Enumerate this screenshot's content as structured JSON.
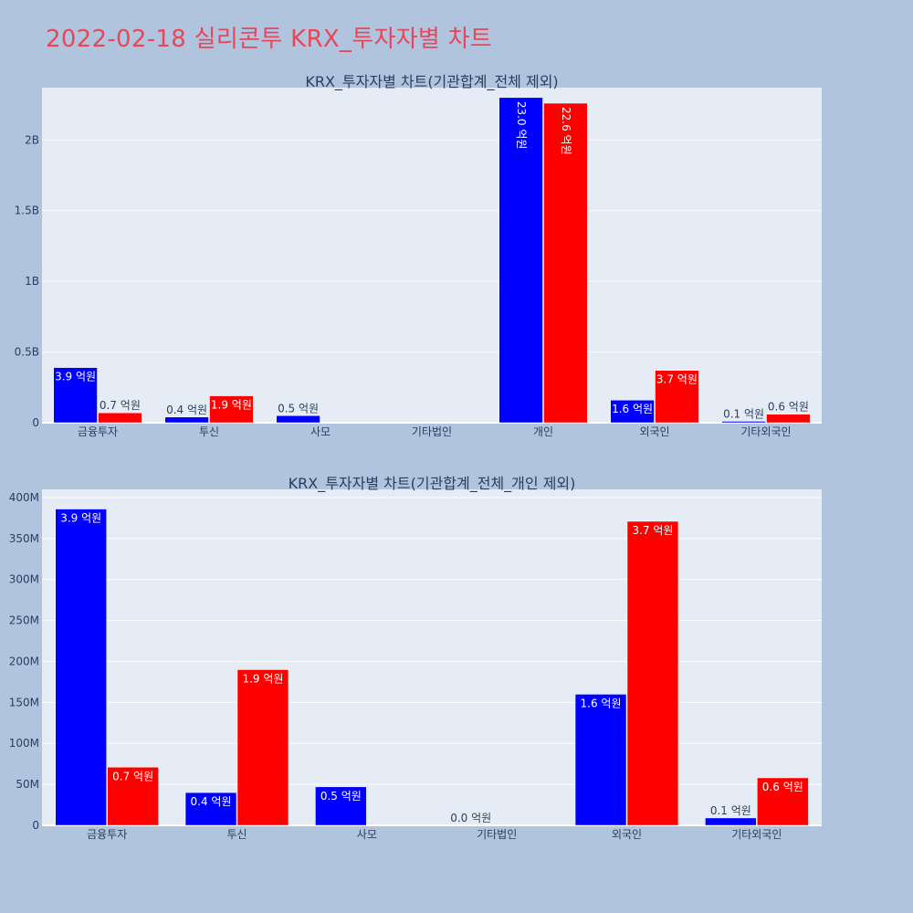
{
  "page": {
    "title": "2022-02-18 실리콘투 KRX_투자자별 차트"
  },
  "colors": {
    "buy": "#0000ff",
    "sell": "#ff0000",
    "plot_bg": "#e5ecf6",
    "page_bg": "#b0c4de",
    "title": "#e8475a"
  },
  "chart_data": [
    {
      "type": "bar",
      "title": "KRX_투자자별 차트(기관합계_전체 제외)",
      "categories": [
        "금융투자",
        "투신",
        "사모",
        "기타법인",
        "개인",
        "외국인",
        "기타외국인"
      ],
      "series": [
        {
          "color": "#0000ff",
          "values": [
            390000000,
            40000000,
            50000000,
            0,
            2300000000,
            160000000,
            10000000
          ],
          "labels": [
            "3.9 억원",
            "0.4 억원",
            "0.5 억원",
            "",
            "23.0 억원",
            "1.6 억원",
            "0.1 억원"
          ]
        },
        {
          "color": "#ff0000",
          "values": [
            70000000,
            190000000,
            0,
            0,
            2260000000,
            370000000,
            60000000
          ],
          "labels": [
            "0.7 억원",
            "1.9 억원",
            "",
            "",
            "22.6 억원",
            "3.7 억원",
            "0.6 억원"
          ]
        }
      ],
      "ylim": [
        0,
        2370000000
      ],
      "yticks": [
        {
          "value": 0,
          "label": "0"
        },
        {
          "value": 500000000,
          "label": "0.5B"
        },
        {
          "value": 1000000000,
          "label": "1B"
        },
        {
          "value": 1500000000,
          "label": "1.5B"
        },
        {
          "value": 2000000000,
          "label": "2B"
        }
      ],
      "grid": true,
      "legend": "none"
    },
    {
      "type": "bar",
      "title": "KRX_투자자별 차트(기관합계_전체_개인 제외)",
      "categories": [
        "금융투자",
        "투신",
        "사모",
        "기타법인",
        "외국인",
        "기타외국인"
      ],
      "series": [
        {
          "color": "#0000ff",
          "values": [
            386000000,
            40000000,
            47000000,
            0,
            160000000,
            9000000
          ],
          "labels": [
            "3.9 억원",
            "0.4 억원",
            "0.5 억원",
            "0.0 억원",
            "1.6 억원",
            "0.1 억원"
          ]
        },
        {
          "color": "#ff0000",
          "values": [
            71000000,
            190000000,
            0,
            0,
            371000000,
            58000000
          ],
          "labels": [
            "0.7 억원",
            "1.9 억원",
            "",
            "",
            "3.7 억원",
            "0.6 억원"
          ]
        }
      ],
      "ylim": [
        0,
        410000000
      ],
      "yticks": [
        {
          "value": 0,
          "label": "0"
        },
        {
          "value": 50000000,
          "label": "50M"
        },
        {
          "value": 100000000,
          "label": "100M"
        },
        {
          "value": 150000000,
          "label": "150M"
        },
        {
          "value": 200000000,
          "label": "200M"
        },
        {
          "value": 250000000,
          "label": "250M"
        },
        {
          "value": 300000000,
          "label": "300M"
        },
        {
          "value": 350000000,
          "label": "350M"
        },
        {
          "value": 400000000,
          "label": "400M"
        }
      ],
      "grid": true,
      "legend": "none"
    }
  ]
}
